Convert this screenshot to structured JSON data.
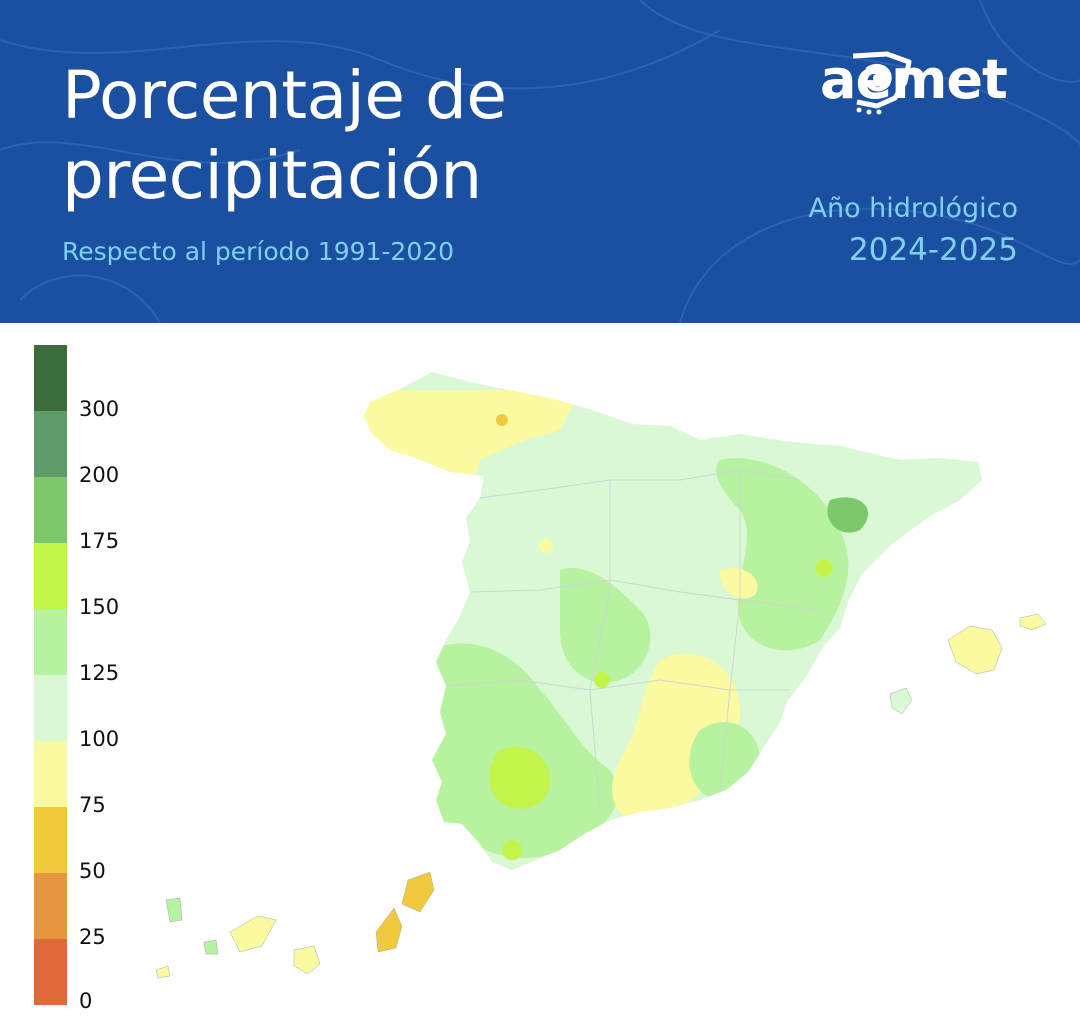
{
  "header": {
    "title_line1": "Porcentaje de",
    "title_line2": "precipitación",
    "subtitle": "Respecto al período 1991-2020",
    "logo_text": "aemet",
    "period_line1": "Año hidrológico",
    "period_line2": "2024-2025",
    "background_color": "#1b4fa0",
    "accent_color": "#7fd0f5"
  },
  "legend": {
    "ticks": [
      "300",
      "200",
      "175",
      "150",
      "125",
      "100",
      "75",
      "50",
      "25",
      "0"
    ],
    "colors": [
      "#3c6b3c",
      "#5f9a6a",
      "#7cc86a",
      "#c3f44a",
      "#b7f2a0",
      "#d9f8d4",
      "#fcfaa0",
      "#f0c93c",
      "#e5963e",
      "#e0693a"
    ]
  }
}
